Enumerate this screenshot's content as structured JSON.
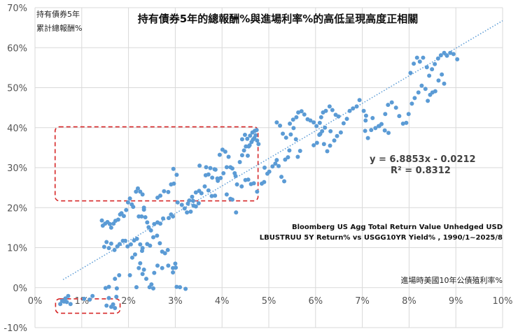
{
  "chart_data": {
    "type": "scatter",
    "title": "持有債券5年的總報酬%與進場利率%的高低呈現高度正相關",
    "ylabel": [
      "持有債券5年",
      "累計總報酬%"
    ],
    "xlabel": "進場時美國10年公債殖利率%",
    "source_note": [
      "Bloomberg US Agg Total Return Value Unhedged USD",
      "LBUSTRUU 5Y Return%  vs  USGG10YR  Yield% , 1990/1~2025/8"
    ],
    "trendline": {
      "slope": 6.8853,
      "intercept": -0.0212,
      "r2": 0.8312,
      "equation_text": "y = 6.8853x - 0.0212",
      "r2_text": "R² = 0.8312"
    },
    "xlim": [
      0,
      0.1
    ],
    "ylim": [
      -0.1,
      0.7
    ],
    "x_ticks": [
      "0%",
      "1%",
      "2%",
      "3%",
      "4%",
      "5%",
      "6%",
      "7%",
      "8%",
      "9%",
      "10%"
    ],
    "y_ticks": [
      "-10%",
      "0%",
      "10%",
      "20%",
      "30%",
      "40%",
      "50%",
      "60%",
      "70%"
    ],
    "grid": true,
    "point_color": "#5b9bd5",
    "trend_color": "#5b9bd5",
    "highlight_color": "#d62728",
    "highlight_boxes": [
      {
        "x": [
          0.0044,
          0.0182
        ],
        "y": [
          -0.064,
          -0.028
        ]
      },
      {
        "x": [
          0.0043,
          0.0477
        ],
        "y": [
          0.217,
          0.402
        ]
      }
    ],
    "series": [
      {
        "points": [
          [
            0.0054,
            -0.041
          ],
          [
            0.0058,
            -0.033
          ],
          [
            0.0062,
            -0.035
          ],
          [
            0.0065,
            -0.027
          ],
          [
            0.0068,
            -0.036
          ],
          [
            0.0071,
            -0.021
          ],
          [
            0.0076,
            -0.041
          ],
          [
            0.0105,
            -0.028
          ],
          [
            0.0117,
            -0.03
          ],
          [
            0.0123,
            -0.021
          ],
          [
            0.0153,
            -0.045
          ],
          [
            0.0158,
            -0.026
          ],
          [
            0.0163,
            -0.048
          ],
          [
            0.0167,
            -0.042
          ],
          [
            0.0171,
            -0.051
          ],
          [
            0.0174,
            -0.023
          ],
          [
            0.0151,
            -0.001
          ],
          [
            0.0158,
            0.002
          ],
          [
            0.0171,
            0.022
          ],
          [
            0.0175,
            -0.002
          ],
          [
            0.018,
            0.031
          ],
          [
            0.0203,
            0.031
          ],
          [
            0.0217,
            0.001
          ],
          [
            0.023,
            0.034
          ],
          [
            0.0245,
            0.001
          ],
          [
            0.0249,
            0.008
          ],
          [
            0.0253,
            -0.002
          ],
          [
            0.0238,
            0.022
          ],
          [
            0.0222,
            0.049
          ],
          [
            0.0225,
            0.061
          ],
          [
            0.0233,
            0.045
          ],
          [
            0.0255,
            0.037
          ],
          [
            0.0262,
            0.055
          ],
          [
            0.0272,
            0.049
          ],
          [
            0.0285,
            0.055
          ],
          [
            0.0295,
            0.049
          ],
          [
            0.0301,
            0.05
          ],
          [
            0.03,
            0.06
          ],
          [
            0.0295,
            0.038
          ],
          [
            0.0303,
            0.002
          ],
          [
            0.031,
            0.001
          ],
          [
            0.0322,
            -0.003
          ],
          [
            0.0143,
            0.168
          ],
          [
            0.0145,
            0.155
          ],
          [
            0.015,
            0.16
          ],
          [
            0.0155,
            0.164
          ],
          [
            0.016,
            0.159
          ],
          [
            0.0163,
            0.15
          ],
          [
            0.0168,
            0.16
          ],
          [
            0.0172,
            0.167
          ],
          [
            0.0178,
            0.17
          ],
          [
            0.0182,
            0.183
          ],
          [
            0.0185,
            0.186
          ],
          [
            0.019,
            0.179
          ],
          [
            0.0195,
            0.194
          ],
          [
            0.0199,
            0.213
          ],
          [
            0.0203,
            0.223
          ],
          [
            0.0207,
            0.208
          ],
          [
            0.021,
            0.202
          ],
          [
            0.0216,
            0.24
          ],
          [
            0.022,
            0.248
          ],
          [
            0.0225,
            0.24
          ],
          [
            0.023,
            0.233
          ],
          [
            0.0233,
            0.2
          ],
          [
            0.0148,
            0.102
          ],
          [
            0.0153,
            0.114
          ],
          [
            0.0158,
            0.099
          ],
          [
            0.0163,
            0.11
          ],
          [
            0.017,
            0.094
          ],
          [
            0.0176,
            0.103
          ],
          [
            0.0181,
            0.109
          ],
          [
            0.0188,
            0.117
          ],
          [
            0.0193,
            0.117
          ],
          [
            0.0198,
            0.103
          ],
          [
            0.0205,
            0.108
          ],
          [
            0.0212,
            0.118
          ],
          [
            0.0218,
            0.122
          ],
          [
            0.0225,
            0.108
          ],
          [
            0.023,
            0.099
          ],
          [
            0.0222,
            0.178
          ],
          [
            0.0228,
            0.178
          ],
          [
            0.0233,
            0.195
          ],
          [
            0.0236,
            0.176
          ],
          [
            0.024,
            0.163
          ],
          [
            0.0243,
            0.151
          ],
          [
            0.0248,
            0.143
          ],
          [
            0.0255,
            0.159
          ],
          [
            0.0262,
            0.163
          ],
          [
            0.0268,
            0.16
          ],
          [
            0.0274,
            0.173
          ],
          [
            0.0286,
            0.174
          ],
          [
            0.0291,
            0.183
          ],
          [
            0.0295,
            0.178
          ],
          [
            0.024,
            0.109
          ],
          [
            0.0246,
            0.105
          ],
          [
            0.0253,
            0.126
          ],
          [
            0.0261,
            0.13
          ],
          [
            0.0267,
            0.111
          ],
          [
            0.0272,
            0.09
          ],
          [
            0.0278,
            0.086
          ],
          [
            0.0284,
            0.094
          ],
          [
            0.0208,
            0.075
          ],
          [
            0.0214,
            0.083
          ],
          [
            0.0229,
            0.092
          ],
          [
            0.0262,
            0.225
          ],
          [
            0.0268,
            0.23
          ],
          [
            0.0276,
            0.241
          ],
          [
            0.0285,
            0.239
          ],
          [
            0.0291,
            0.258
          ],
          [
            0.0297,
            0.26
          ],
          [
            0.0303,
            0.282
          ],
          [
            0.0296,
            0.297
          ],
          [
            0.0305,
            0.213
          ],
          [
            0.0314,
            0.207
          ],
          [
            0.032,
            0.198
          ],
          [
            0.0327,
            0.21
          ],
          [
            0.033,
            0.218
          ],
          [
            0.0336,
            0.227
          ],
          [
            0.0338,
            0.217
          ],
          [
            0.0344,
            0.238
          ],
          [
            0.0351,
            0.242
          ],
          [
            0.0356,
            0.236
          ],
          [
            0.0363,
            0.253
          ],
          [
            0.0365,
            0.281
          ],
          [
            0.0371,
            0.283
          ],
          [
            0.0379,
            0.275
          ],
          [
            0.0386,
            0.295
          ],
          [
            0.0371,
            0.243
          ],
          [
            0.0378,
            0.229
          ],
          [
            0.0385,
            0.23
          ],
          [
            0.0391,
            0.267
          ],
          [
            0.0397,
            0.274
          ],
          [
            0.0403,
            0.286
          ],
          [
            0.041,
            0.301
          ],
          [
            0.0414,
            0.327
          ],
          [
            0.0418,
            0.301
          ],
          [
            0.0422,
            0.298
          ],
          [
            0.0427,
            0.286
          ],
          [
            0.0429,
            0.279
          ],
          [
            0.0432,
            0.258
          ],
          [
            0.0352,
            0.305
          ],
          [
            0.0366,
            0.301
          ],
          [
            0.0375,
            0.299
          ],
          [
            0.0384,
            0.296
          ],
          [
            0.039,
            0.273
          ],
          [
            0.0395,
            0.332
          ],
          [
            0.0401,
            0.345
          ],
          [
            0.0407,
            0.34
          ],
          [
            0.0325,
            0.188
          ],
          [
            0.0333,
            0.19
          ],
          [
            0.0339,
            0.205
          ],
          [
            0.0344,
            0.203
          ],
          [
            0.035,
            0.211
          ],
          [
            0.041,
            0.233
          ],
          [
            0.0418,
            0.222
          ],
          [
            0.0422,
            0.22
          ],
          [
            0.043,
            0.188
          ],
          [
            0.0442,
            0.253
          ],
          [
            0.045,
            0.269
          ],
          [
            0.0456,
            0.27
          ],
          [
            0.0462,
            0.259
          ],
          [
            0.0468,
            0.261
          ],
          [
            0.0475,
            0.24
          ],
          [
            0.0485,
            0.26
          ],
          [
            0.049,
            0.264
          ],
          [
            0.0438,
            0.314
          ],
          [
            0.0443,
            0.331
          ],
          [
            0.0447,
            0.343
          ],
          [
            0.0451,
            0.353
          ],
          [
            0.0455,
            0.33
          ],
          [
            0.0459,
            0.356
          ],
          [
            0.0463,
            0.364
          ],
          [
            0.0466,
            0.37
          ],
          [
            0.0469,
            0.374
          ],
          [
            0.0472,
            0.381
          ],
          [
            0.0475,
            0.368
          ],
          [
            0.0478,
            0.359
          ],
          [
            0.0443,
            0.371
          ],
          [
            0.0449,
            0.382
          ],
          [
            0.0454,
            0.372
          ],
          [
            0.046,
            0.38
          ],
          [
            0.0465,
            0.388
          ],
          [
            0.047,
            0.392
          ],
          [
            0.0474,
            0.394
          ],
          [
            0.0457,
            0.353
          ],
          [
            0.0491,
            0.3
          ],
          [
            0.0497,
            0.285
          ],
          [
            0.0501,
            0.29
          ],
          [
            0.0508,
            0.303
          ],
          [
            0.0514,
            0.31
          ],
          [
            0.0517,
            0.319
          ],
          [
            0.0521,
            0.304
          ],
          [
            0.0527,
            0.277
          ],
          [
            0.0533,
            0.266
          ],
          [
            0.0535,
            0.32
          ],
          [
            0.0541,
            0.326
          ],
          [
            0.0544,
            0.343
          ],
          [
            0.0547,
            0.383
          ],
          [
            0.0553,
            0.399
          ],
          [
            0.0558,
            0.371
          ],
          [
            0.0562,
            0.327
          ],
          [
            0.0567,
            0.342
          ],
          [
            0.0517,
            0.413
          ],
          [
            0.0524,
            0.405
          ],
          [
            0.053,
            0.385
          ],
          [
            0.0537,
            0.375
          ],
          [
            0.0545,
            0.41
          ],
          [
            0.0552,
            0.42
          ],
          [
            0.0559,
            0.426
          ],
          [
            0.0563,
            0.438
          ],
          [
            0.057,
            0.441
          ],
          [
            0.0576,
            0.433
          ],
          [
            0.0583,
            0.421
          ],
          [
            0.0589,
            0.418
          ],
          [
            0.0596,
            0.413
          ],
          [
            0.0602,
            0.404
          ],
          [
            0.0609,
            0.412
          ],
          [
            0.0612,
            0.426
          ],
          [
            0.0616,
            0.438
          ],
          [
            0.0622,
            0.442
          ],
          [
            0.063,
            0.453
          ],
          [
            0.0636,
            0.444
          ],
          [
            0.0643,
            0.432
          ],
          [
            0.0649,
            0.428
          ],
          [
            0.0596,
            0.356
          ],
          [
            0.0603,
            0.362
          ],
          [
            0.061,
            0.384
          ],
          [
            0.0618,
            0.359
          ],
          [
            0.0625,
            0.341
          ],
          [
            0.0631,
            0.355
          ],
          [
            0.064,
            0.368
          ],
          [
            0.0646,
            0.379
          ],
          [
            0.0654,
            0.388
          ],
          [
            0.066,
            0.411
          ],
          [
            0.0667,
            0.422
          ],
          [
            0.0673,
            0.442
          ],
          [
            0.068,
            0.448
          ],
          [
            0.0688,
            0.453
          ],
          [
            0.0694,
            0.469
          ],
          [
            0.0703,
            0.442
          ],
          [
            0.0708,
            0.43
          ],
          [
            0.0608,
            0.382
          ],
          [
            0.0614,
            0.391
          ],
          [
            0.062,
            0.4
          ],
          [
            0.0632,
            0.391
          ],
          [
            0.0706,
            0.392
          ],
          [
            0.0712,
            0.374
          ],
          [
            0.0719,
            0.394
          ],
          [
            0.0728,
            0.399
          ],
          [
            0.0735,
            0.404
          ],
          [
            0.0741,
            0.409
          ],
          [
            0.0749,
            0.434
          ],
          [
            0.0755,
            0.457
          ],
          [
            0.0763,
            0.463
          ],
          [
            0.0772,
            0.45
          ],
          [
            0.0779,
            0.429
          ],
          [
            0.0787,
            0.41
          ],
          [
            0.0794,
            0.412
          ],
          [
            0.0799,
            0.434
          ],
          [
            0.0806,
            0.46
          ],
          [
            0.0812,
            0.474
          ],
          [
            0.082,
            0.488
          ],
          [
            0.0827,
            0.505
          ],
          [
            0.0835,
            0.497
          ],
          [
            0.084,
            0.467
          ],
          [
            0.0845,
            0.482
          ],
          [
            0.085,
            0.488
          ],
          [
            0.0856,
            0.491
          ],
          [
            0.0863,
            0.518
          ],
          [
            0.087,
            0.533
          ],
          [
            0.0875,
            0.51
          ],
          [
            0.0707,
            0.418
          ],
          [
            0.0722,
            0.424
          ],
          [
            0.0736,
            0.404
          ],
          [
            0.0748,
            0.393
          ],
          [
            0.0756,
            0.387
          ],
          [
            0.0803,
            0.537
          ],
          [
            0.081,
            0.56
          ],
          [
            0.0817,
            0.575
          ],
          [
            0.0823,
            0.565
          ],
          [
            0.083,
            0.575
          ],
          [
            0.0838,
            0.551
          ],
          [
            0.0843,
            0.53
          ],
          [
            0.0849,
            0.546
          ],
          [
            0.0855,
            0.559
          ],
          [
            0.0862,
            0.573
          ],
          [
            0.0868,
            0.581
          ],
          [
            0.0875,
            0.587
          ],
          [
            0.0881,
            0.58
          ],
          [
            0.0888,
            0.587
          ],
          [
            0.0895,
            0.584
          ],
          [
            0.0903,
            0.571
          ]
        ]
      }
    ]
  }
}
